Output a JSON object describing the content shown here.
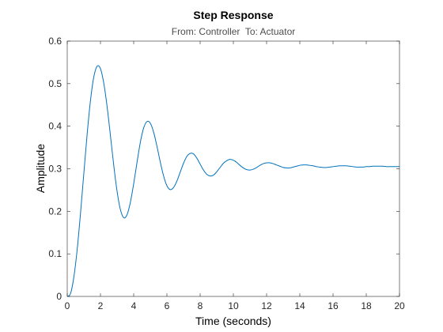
{
  "chart_data": {
    "type": "line",
    "title": "Step Response",
    "subtitle": "From: Controller  To: Actuator",
    "xlabel": "Time (seconds)",
    "ylabel": "Amplitude",
    "xlim": [
      0,
      20
    ],
    "ylim": [
      0,
      0.6
    ],
    "xticks": [
      0,
      2,
      4,
      6,
      8,
      10,
      12,
      14,
      16,
      18,
      20
    ],
    "yticks": [
      0,
      0.1,
      0.2,
      0.3,
      0.4,
      0.5,
      0.6
    ],
    "xtick_labels": [
      "0",
      "2",
      "4",
      "6",
      "8",
      "10",
      "12",
      "14",
      "16",
      "18",
      "20"
    ],
    "ytick_labels": [
      "0",
      "0.1",
      "0.2",
      "0.3",
      "0.4",
      "0.5",
      "0.6"
    ],
    "grid": false,
    "box": true,
    "series": [
      {
        "color": "#0072bd",
        "x": [
          0,
          0.2,
          0.4,
          0.6,
          0.8,
          1.0,
          1.2,
          1.4,
          1.6,
          1.8,
          2.0,
          2.2,
          2.4,
          2.6,
          2.8,
          3.0,
          3.2,
          3.4,
          3.6,
          3.8,
          4.0,
          4.2,
          4.4,
          4.6,
          4.8,
          5.0,
          5.2,
          5.4,
          5.6,
          5.8,
          6.0,
          6.2,
          6.4,
          6.6,
          6.8,
          7.0,
          7.2,
          7.4,
          7.6,
          7.8,
          8.0,
          8.2,
          8.4,
          8.6,
          8.8,
          9.0,
          9.2,
          9.4,
          9.6,
          9.8,
          10.0,
          10.2,
          10.4,
          10.6,
          10.8,
          11.0,
          11.2,
          11.4,
          11.6,
          11.8,
          12.0,
          12.2,
          12.4,
          12.6,
          12.8,
          13.0,
          13.2,
          13.4,
          13.6,
          13.8,
          14.0,
          14.2,
          14.4,
          14.6,
          14.8,
          15.0,
          15.2,
          15.4,
          15.6,
          15.8,
          16.0,
          16.2,
          16.4,
          16.6,
          16.8,
          17.0,
          17.2,
          17.4,
          17.6,
          17.8,
          18.0,
          18.2,
          18.4,
          18.6,
          18.8,
          19.0,
          19.2,
          19.4,
          19.6,
          19.8,
          20.0
        ],
        "y": [
          0,
          0.007,
          0.046,
          0.111,
          0.196,
          0.29,
          0.382,
          0.461,
          0.516,
          0.541,
          0.535,
          0.501,
          0.446,
          0.378,
          0.308,
          0.247,
          0.204,
          0.185,
          0.192,
          0.221,
          0.265,
          0.315,
          0.362,
          0.396,
          0.411,
          0.407,
          0.386,
          0.353,
          0.316,
          0.283,
          0.26,
          0.251,
          0.256,
          0.271,
          0.292,
          0.313,
          0.329,
          0.336,
          0.335,
          0.325,
          0.311,
          0.297,
          0.287,
          0.283,
          0.285,
          0.293,
          0.303,
          0.313,
          0.319,
          0.322,
          0.32,
          0.315,
          0.308,
          0.302,
          0.298,
          0.297,
          0.299,
          0.303,
          0.308,
          0.312,
          0.314,
          0.314,
          0.312,
          0.309,
          0.306,
          0.303,
          0.302,
          0.302,
          0.304,
          0.306,
          0.308,
          0.309,
          0.309,
          0.308,
          0.307,
          0.305,
          0.304,
          0.303,
          0.303,
          0.304,
          0.305,
          0.306,
          0.307,
          0.307,
          0.307,
          0.306,
          0.305,
          0.304,
          0.304,
          0.304,
          0.305,
          0.305,
          0.306,
          0.306,
          0.306,
          0.306,
          0.305,
          0.305,
          0.305,
          0.305,
          0.305
        ]
      }
    ]
  }
}
